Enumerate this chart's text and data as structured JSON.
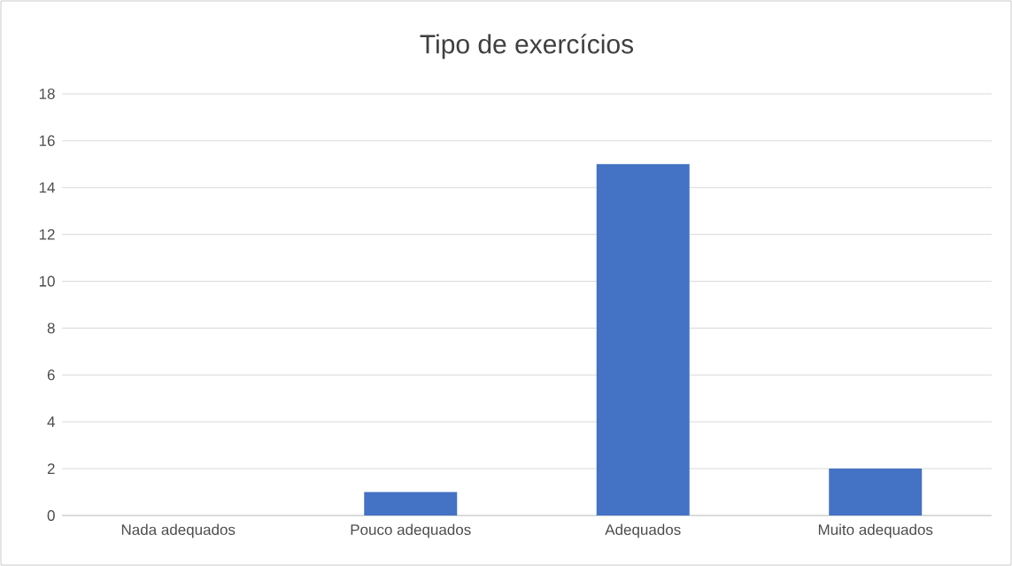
{
  "chart_data": {
    "type": "bar",
    "title": "Tipo de exercícios",
    "categories": [
      "Nada adequados",
      "Pouco adequados",
      "Adequados",
      "Muito adequados"
    ],
    "values": [
      0,
      1,
      15,
      2
    ],
    "color": "#4472c4",
    "ylim": [
      0,
      18
    ],
    "yticks": [
      0,
      2,
      4,
      6,
      8,
      10,
      12,
      14,
      16,
      18
    ],
    "grid": "y"
  }
}
